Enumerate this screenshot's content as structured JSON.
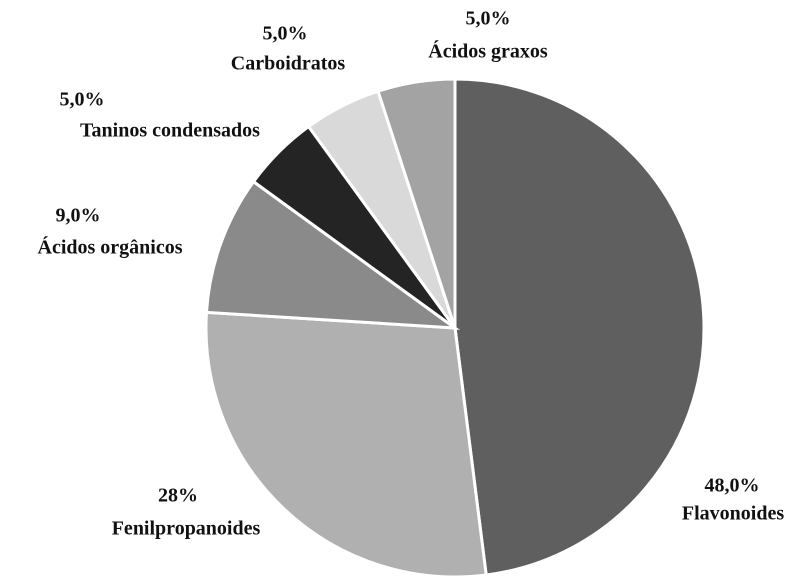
{
  "chart_data": {
    "type": "pie",
    "categories": [
      "Flavonoides",
      "Fenilpropanoides",
      "Ácidos orgânicos",
      "Taninos condensados",
      "Carboidratos",
      "Ácidos graxos"
    ],
    "values": [
      48,
      28,
      9,
      5,
      5,
      5
    ],
    "value_labels": [
      "48,0%",
      "28%",
      "9,0%",
      "5,0%",
      "5,0%",
      "5,0%"
    ],
    "colors": [
      "#5f5f5f",
      "#b0b0b0",
      "#8a8a8a",
      "#242424",
      "#d9d9d9",
      "#a3a3a3"
    ]
  }
}
